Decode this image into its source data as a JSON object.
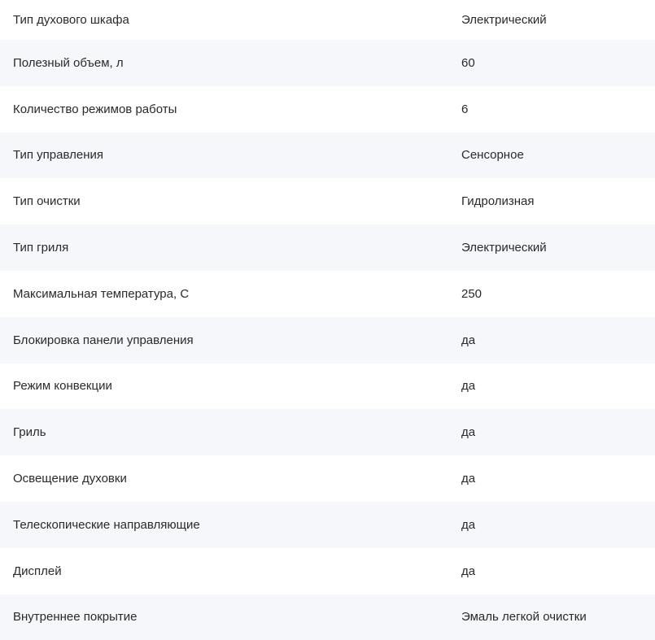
{
  "specs": [
    {
      "label": "Тип духового шкафа",
      "value": "Электрический"
    },
    {
      "label": "Полезный объем, л",
      "value": "60"
    },
    {
      "label": "Количество режимов работы",
      "value": "6"
    },
    {
      "label": "Тип управления",
      "value": "Сенсорное"
    },
    {
      "label": "Тип очистки",
      "value": "Гидролизная"
    },
    {
      "label": "Тип гриля",
      "value": "Электрический"
    },
    {
      "label": "Максимальная температура, С",
      "value": "250"
    },
    {
      "label": "Блокировка панели управления",
      "value": "да"
    },
    {
      "label": "Режим конвекции",
      "value": "да"
    },
    {
      "label": "Гриль",
      "value": "да"
    },
    {
      "label": "Освещение духовки",
      "value": "да"
    },
    {
      "label": "Телескопические направляющие",
      "value": "да"
    },
    {
      "label": "Дисплей",
      "value": "да"
    },
    {
      "label": "Внутреннее покрытие",
      "value": "Эмаль легкой очистки"
    }
  ]
}
